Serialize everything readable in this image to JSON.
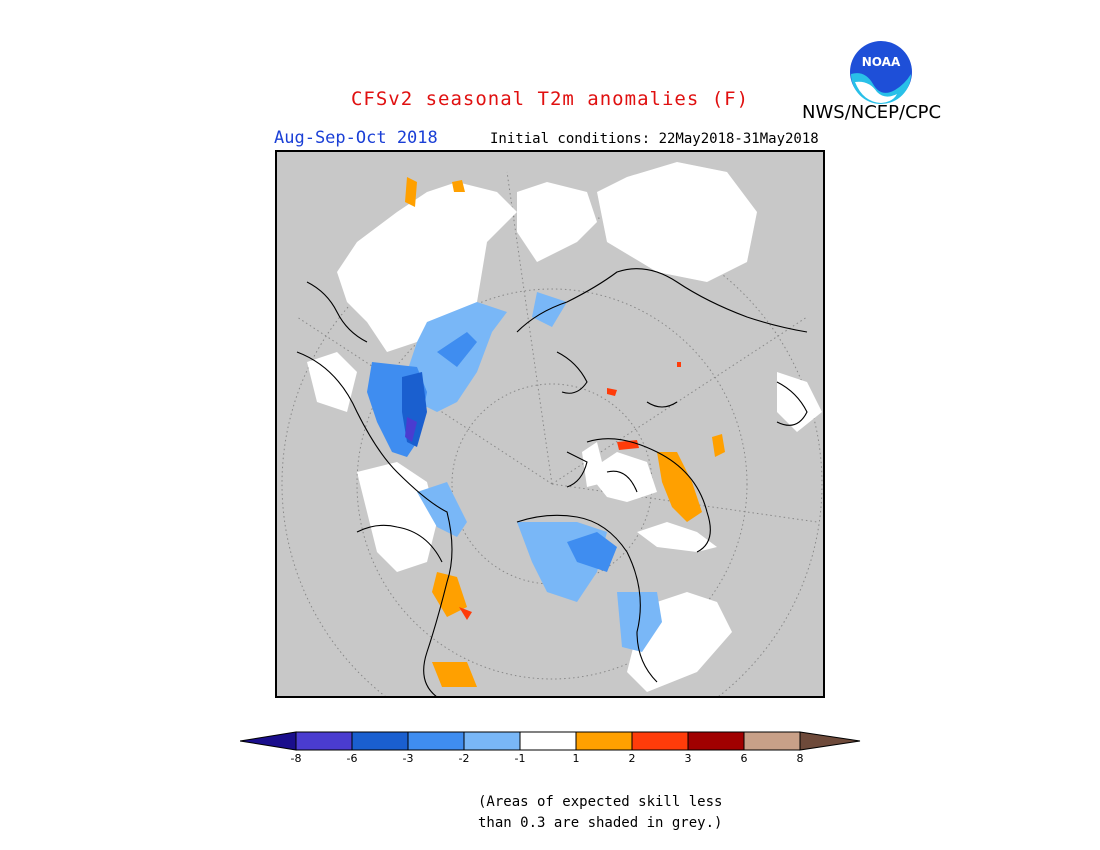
{
  "header": {
    "title": "CFSv2 seasonal T2m anomalies (F)",
    "season": "Aug-Sep-Oct 2018",
    "initial_conditions": "Initial conditions: 22May2018-31May2018",
    "org": "NWS/NCEP/CPC",
    "logo_text": "NOAA"
  },
  "colorbar": {
    "ticks": [
      "-8",
      "-6",
      "-3",
      "-2",
      "-1",
      "1",
      "2",
      "3",
      "6",
      "8"
    ],
    "colors": [
      "#1a0e8c",
      "#4a3cd0",
      "#1a5fcf",
      "#3f8df0",
      "#79b7f7",
      "#ffffff",
      "#ffa000",
      "#ff3c0a",
      "#a00000",
      "#c8a088",
      "#6e4a3a"
    ]
  },
  "note": {
    "line1": "(Areas of expected skill less",
    "line2": "than 0.3 are shaded in grey.)"
  },
  "map_regions": {
    "cold_colors": [
      "#79b7f7",
      "#3f8df0",
      "#1a5fcf"
    ],
    "warm_colors": [
      "#ffa000",
      "#ff3c0a"
    ],
    "no_skill_color": "#c8c8c8",
    "neutral_color": "#ffffff"
  }
}
